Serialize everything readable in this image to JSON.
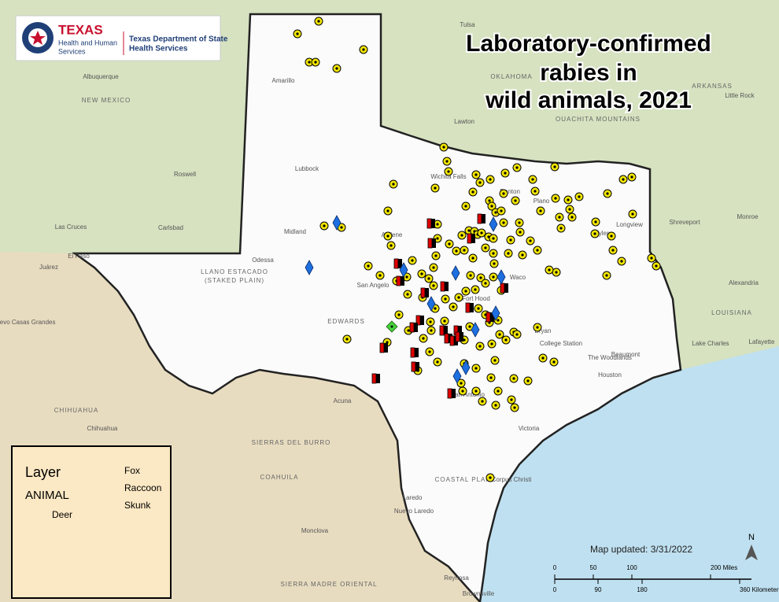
{
  "logo": {
    "agency": "TEXAS",
    "sub": [
      "Health and Human",
      "Services"
    ],
    "dept": [
      "Texas Department of State",
      "Health Services"
    ]
  },
  "title": [
    "Laboratory-confirmed",
    "rabies in",
    "wild animals, 2021"
  ],
  "legend": {
    "heading": "Layer",
    "field": "ANIMAL",
    "items": [
      "Deer",
      "Fox",
      "Raccoon",
      "Skunk"
    ]
  },
  "updated": "Map updated: 3/31/2022",
  "scale": {
    "miles": [
      "0",
      "50",
      "100",
      "200 Miles"
    ],
    "km": [
      "0",
      "90",
      "180",
      "360 Kilometers"
    ]
  },
  "north": "N",
  "places": [
    "Amarillo",
    "Lubbock",
    "Midland",
    "Odessa",
    "El Paso",
    "Juárez",
    "Abilene",
    "San Angelo",
    "Wichita Falls",
    "Denton",
    "Plano",
    "Tyler",
    "Longview",
    "Waco",
    "Fort Hood",
    "Bryan",
    "College Station",
    "Houston",
    "Beaumont",
    "an Antonio",
    "Victoria",
    "Corpus Christi",
    "Laredo",
    "Nuevo Laredo",
    "Acuna",
    "Shreveport",
    "Alexandria",
    "Lake Charles",
    "Lafayette",
    "Monroe",
    "Lawton",
    "Roswell",
    "Carlsbad",
    "Las Cruces",
    "Albuquerque",
    "Chihuahua",
    "Monclova",
    "Reynosa",
    "Brownsville",
    "The Woodlands",
    "Tulsa",
    "Little Rock",
    "Nuevo Casas Grandes"
  ],
  "regions": [
    "NEW MEXICO",
    "OKLAHOMA",
    "ARKANSAS",
    "LOUISIANA",
    "CHIHUAHUA",
    "COAHUILA",
    "SIERRAS DEL BURRO",
    "SIERRA MADRE ORIENTAL",
    "LLANO ESTACADO",
    "(STAKED PLAIN)",
    "EDWARDS",
    "OUACHITA MOUNTAINS",
    "COASTAL PLAIN"
  ]
}
